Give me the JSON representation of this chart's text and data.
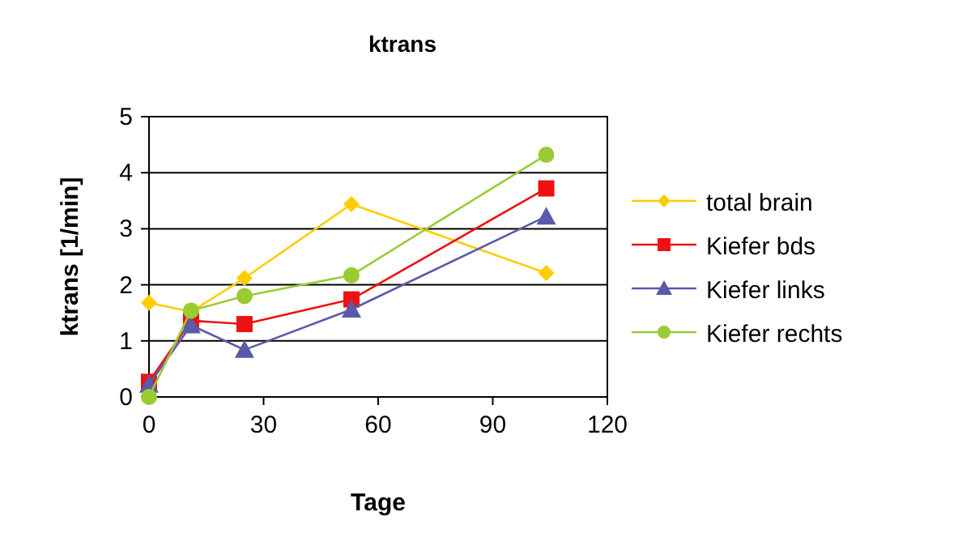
{
  "chart_data": {
    "type": "line",
    "title": "ktrans",
    "xlabel": "Tage",
    "ylabel": "ktrans [1/min]",
    "xlim": [
      0,
      120
    ],
    "xticks": [
      0,
      30,
      60,
      90,
      120
    ],
    "ylim": [
      0,
      5
    ],
    "yticks": [
      0,
      1,
      2,
      3,
      4,
      5
    ],
    "grid": "y",
    "legend": "right",
    "series": [
      {
        "name": "total brain",
        "color": "#ffcc00",
        "marker": "diamond",
        "x": [
          0,
          11,
          25,
          53,
          104
        ],
        "values": [
          1.68,
          1.52,
          2.12,
          3.44,
          2.21
        ]
      },
      {
        "name": "Kiefer bds",
        "color": "#ee1111",
        "marker": "square",
        "x": [
          0,
          11,
          25,
          53,
          104
        ],
        "values": [
          0.27,
          1.36,
          1.3,
          1.74,
          3.72
        ]
      },
      {
        "name": "Kiefer links",
        "color": "#5a5aaa",
        "marker": "triangle",
        "x": [
          0,
          11,
          25,
          53,
          104
        ],
        "values": [
          0.22,
          1.28,
          0.84,
          1.56,
          3.22
        ]
      },
      {
        "name": "Kiefer rechts",
        "color": "#99cc33",
        "marker": "circle",
        "x": [
          0,
          11,
          25,
          53,
          104
        ],
        "values": [
          0,
          1.54,
          1.8,
          2.17,
          4.32
        ]
      }
    ]
  }
}
